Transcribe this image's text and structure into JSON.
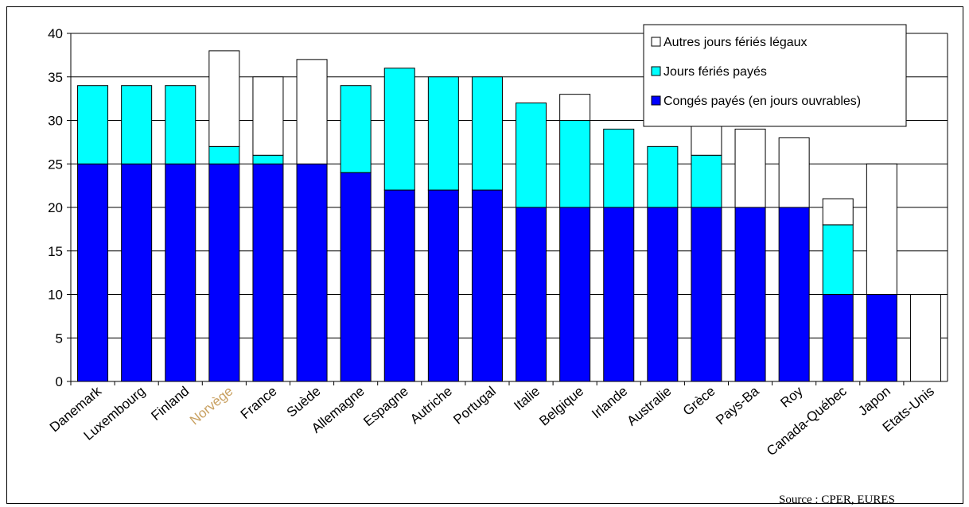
{
  "source": "Source : CPER, EURES",
  "colors": {
    "conges": "#0000FF",
    "feries_payes": "#00FFFF",
    "autres": "#FFFFFF",
    "norvege_label": "#C8A060"
  },
  "chart_data": {
    "type": "bar",
    "stacked": true,
    "title": "",
    "xlabel": "",
    "ylabel": "",
    "ylim": [
      0,
      40
    ],
    "yticks": [
      0,
      5,
      10,
      15,
      20,
      25,
      30,
      35,
      40
    ],
    "grid": true,
    "legend_position": "top-right",
    "categories": [
      "Danemark",
      "Luxembourg",
      "Finland",
      "Norvège",
      "France",
      "Suède",
      "Allemagne",
      "Espagne",
      "Autriche",
      "Portugal",
      "Italie",
      "Belgique",
      "Irlande",
      "Australie",
      "Grèce",
      "Pays-Ba",
      "Roy",
      "Canada-Québec",
      "Japon",
      "Etats-Unis"
    ],
    "series": [
      {
        "name": "Congés payés (en jours ouvrables)",
        "color": "#0000FF",
        "values": [
          25,
          25,
          25,
          25,
          25,
          25,
          24,
          22,
          22,
          22,
          20,
          20,
          20,
          20,
          20,
          20,
          20,
          10,
          10,
          0
        ]
      },
      {
        "name": "Jours fériés payés",
        "color": "#00FFFF",
        "values": [
          9,
          9,
          9,
          2,
          1,
          0,
          10,
          14,
          13,
          13,
          12,
          10,
          9,
          7,
          6,
          0,
          0,
          8,
          0,
          0
        ]
      },
      {
        "name": "Autres jours fériés légaux",
        "color": "#FFFFFF",
        "values": [
          0,
          0,
          0,
          11,
          9,
          12,
          0,
          0,
          0,
          0,
          0,
          3,
          0,
          0,
          5,
          9,
          8,
          3,
          15,
          10
        ]
      }
    ],
    "legend_order": [
      "Autres jours fériés légaux",
      "Jours fériés payés",
      "Congés payés (en jours ouvrables)"
    ]
  }
}
